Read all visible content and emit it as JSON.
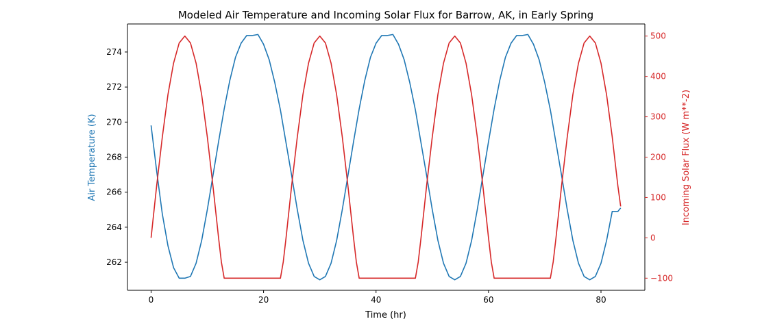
{
  "chart_data": {
    "type": "line",
    "title": "Modeled Air Temperature and Incoming Solar Flux for Barrow, AK, in Early Spring",
    "xlabel": "Time (hr)",
    "ylabel_left": "Air Temperature (K)",
    "ylabel_right": "Incoming Solar Flux (W m**-2)",
    "xlim": [
      -4.2,
      87.8
    ],
    "ylim_left": [
      260.4,
      275.6
    ],
    "ylim_right": [
      -130,
      530
    ],
    "xticks": [
      0,
      20,
      40,
      60,
      80
    ],
    "yticks_left": [
      262,
      264,
      266,
      268,
      270,
      272,
      274
    ],
    "yticks_right": [
      -100,
      0,
      100,
      200,
      300,
      400,
      500
    ],
    "grid": false,
    "series": [
      {
        "axis": "left",
        "color": "#1f77b4",
        "x": [
          0,
          1,
          2,
          3,
          4,
          5,
          6,
          7,
          8,
          9,
          10,
          11,
          12,
          13,
          14,
          15,
          16,
          17,
          18,
          19,
          20,
          21,
          22,
          23,
          24,
          25,
          26,
          27,
          28,
          29,
          30,
          31,
          32,
          33,
          34,
          35,
          36,
          37,
          38,
          39,
          40,
          41,
          42,
          43,
          44,
          45,
          46,
          47,
          48,
          49,
          50,
          51,
          52,
          53,
          54,
          55,
          56,
          57,
          58,
          59,
          60,
          61,
          62,
          63,
          64,
          65,
          66,
          67,
          68,
          69,
          70,
          71,
          72,
          73,
          74,
          75,
          76,
          77,
          78,
          79,
          80,
          81,
          82,
          83,
          83.5
        ],
        "y": [
          269.81,
          267.19,
          264.75,
          262.94,
          261.69,
          261.09,
          261.09,
          261.19,
          261.94,
          263.25,
          265.0,
          266.94,
          268.88,
          270.75,
          272.38,
          273.69,
          274.5,
          274.94,
          274.94,
          275.0,
          274.44,
          273.56,
          272.25,
          270.69,
          268.81,
          266.94,
          265.0,
          263.25,
          261.94,
          261.19,
          261.0,
          261.19,
          261.94,
          263.25,
          265.0,
          266.94,
          268.88,
          270.75,
          272.38,
          273.69,
          274.5,
          274.94,
          274.94,
          275.0,
          274.44,
          273.56,
          272.25,
          270.69,
          268.81,
          266.94,
          265.0,
          263.25,
          261.94,
          261.19,
          261.0,
          261.19,
          261.94,
          263.25,
          265.0,
          266.94,
          268.88,
          270.75,
          272.38,
          273.69,
          274.5,
          274.94,
          274.94,
          275.0,
          274.44,
          273.56,
          272.25,
          270.69,
          268.81,
          266.94,
          265.0,
          263.25,
          261.94,
          261.19,
          261.0,
          261.19,
          261.94,
          263.25,
          264.9,
          264.9,
          265.1
        ]
      },
      {
        "axis": "right",
        "color": "#d62728",
        "x": [
          0,
          1,
          2,
          3,
          4,
          5,
          6,
          7,
          8,
          9,
          10,
          11,
          12,
          12.5,
          13,
          14,
          15,
          16,
          17,
          18,
          19,
          20,
          21,
          22,
          23,
          23.5,
          24,
          25,
          26,
          27,
          28,
          29,
          30,
          31,
          32,
          33,
          34,
          35,
          36,
          36.5,
          37,
          38,
          39,
          40,
          41,
          42,
          43,
          44,
          45,
          46,
          47,
          47.5,
          48,
          49,
          50,
          51,
          52,
          53,
          54,
          55,
          56,
          57,
          58,
          59,
          60,
          60.5,
          61,
          62,
          63,
          64,
          65,
          66,
          67,
          68,
          69,
          70,
          71,
          71.5,
          72,
          73,
          74,
          75,
          76,
          77,
          78,
          79,
          80,
          81,
          82,
          83,
          83.5
        ],
        "y": [
          0,
          130,
          250,
          355,
          433,
          483,
          500,
          483,
          433,
          354,
          250,
          129,
          0,
          -60,
          -100,
          -100,
          -100,
          -100,
          -100,
          -100,
          -100,
          -100,
          -100,
          -100,
          -100,
          -60,
          0,
          130,
          250,
          355,
          433,
          483,
          500,
          483,
          433,
          354,
          250,
          129,
          0,
          -60,
          -100,
          -100,
          -100,
          -100,
          -100,
          -100,
          -100,
          -100,
          -100,
          -100,
          -100,
          -60,
          0,
          130,
          250,
          355,
          433,
          483,
          500,
          483,
          433,
          354,
          250,
          129,
          0,
          -60,
          -100,
          -100,
          -100,
          -100,
          -100,
          -100,
          -100,
          -100,
          -100,
          -100,
          -100,
          -60,
          0,
          130,
          250,
          355,
          433,
          483,
          500,
          483,
          433,
          354,
          250,
          129,
          78
        ]
      }
    ]
  }
}
